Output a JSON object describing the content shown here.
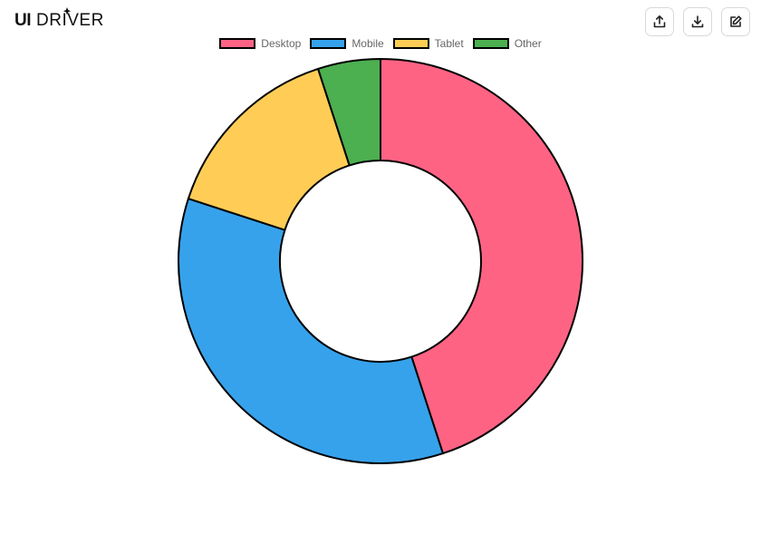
{
  "app": {
    "logo_text": "UIDRIVER"
  },
  "toolbar": {
    "buttons": [
      {
        "icon": "share-icon",
        "label": "Share"
      },
      {
        "icon": "download-icon",
        "label": "Download"
      },
      {
        "icon": "edit-icon",
        "label": "Edit"
      }
    ]
  },
  "chart_data": {
    "type": "doughnut",
    "categories": [
      "Desktop",
      "Mobile",
      "Tablet",
      "Other"
    ],
    "values": [
      45,
      35,
      15,
      5
    ],
    "colors": [
      "#ff6384",
      "#36a2eb",
      "#ffcd56",
      "#4caf50"
    ],
    "border_color": "#000000",
    "legend": "top",
    "title": ""
  }
}
